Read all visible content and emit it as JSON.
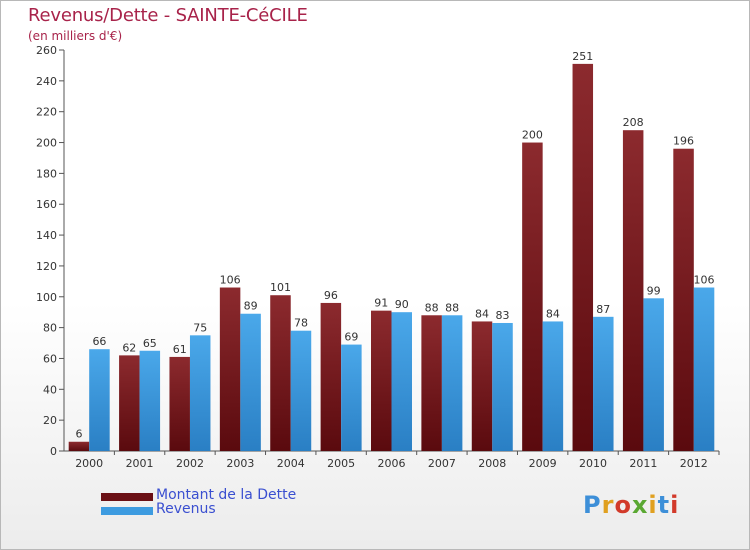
{
  "header": {
    "title": "Revenus/Dette - SAINTE-CéCILE",
    "subtitle": "(en milliers d'€)"
  },
  "legend": {
    "debt_label": "Montant de la Dette",
    "revenue_label": "Revenus"
  },
  "logo": {
    "text": "Proxiti"
  },
  "colors": {
    "debt": "#7a1a1e",
    "revenue": "#3d9be0",
    "title": "#a8234a"
  },
  "chart_data": {
    "type": "bar",
    "title": "Revenus/Dette - SAINTE-CéCILE",
    "subtitle": "(en milliers d'€)",
    "categories": [
      "2000",
      "2001",
      "2002",
      "2003",
      "2004",
      "2005",
      "2006",
      "2007",
      "2008",
      "2009",
      "2010",
      "2011",
      "2012"
    ],
    "series": [
      {
        "name": "Montant de la Dette",
        "values": [
          6,
          62,
          61,
          106,
          101,
          96,
          91,
          88,
          84,
          200,
          251,
          208,
          196
        ]
      },
      {
        "name": "Revenus",
        "values": [
          66,
          65,
          75,
          89,
          78,
          69,
          90,
          88,
          83,
          84,
          87,
          99,
          106
        ]
      }
    ],
    "ylim": [
      0,
      260
    ],
    "yticks": [
      0,
      20,
      40,
      60,
      80,
      100,
      120,
      140,
      160,
      180,
      200,
      220,
      240,
      260
    ],
    "grid": false,
    "legend_position": "bottom-left"
  }
}
